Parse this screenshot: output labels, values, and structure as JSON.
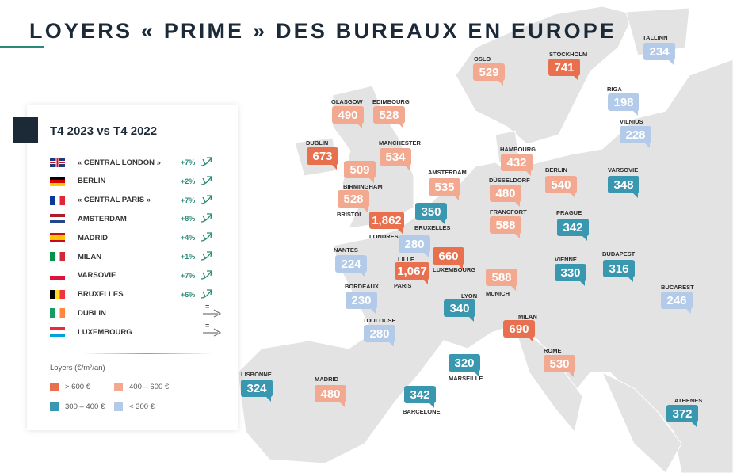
{
  "title": "LOYERS « PRIME » DES BUREAUX EN EUROPE",
  "colors": {
    "above_600": "#e9704f",
    "400_600": "#f2a98f",
    "300_400": "#3a97b0",
    "below_300": "#b3cbe9",
    "title": "#1c2a38",
    "trend_up": "#2a8a77"
  },
  "panel": {
    "heading": "T4 2023 vs T4 2022",
    "rows": [
      {
        "flag": "uk-flag",
        "name": "« CENTRAL LONDON »",
        "change": "+7%",
        "trend": "up"
      },
      {
        "flag": "germany-flag",
        "name": "BERLIN",
        "change": "+2%",
        "trend": "up"
      },
      {
        "flag": "france-flag",
        "name": "« CENTRAL PARIS »",
        "change": "+7%",
        "trend": "up"
      },
      {
        "flag": "netherlands-flag",
        "name": "AMSTERDAM",
        "change": "+8%",
        "trend": "up"
      },
      {
        "flag": "spain-flag",
        "name": "MADRID",
        "change": "+4%",
        "trend": "up"
      },
      {
        "flag": "italy-flag",
        "name": "MILAN",
        "change": "+1%",
        "trend": "up"
      },
      {
        "flag": "poland-flag",
        "name": "VARSOVIE",
        "change": "+7%",
        "trend": "up"
      },
      {
        "flag": "belgium-flag",
        "name": "BRUXELLES",
        "change": "+6%",
        "trend": "up"
      },
      {
        "flag": "ireland-flag",
        "name": "DUBLIN",
        "change": "=",
        "trend": "stable"
      },
      {
        "flag": "luxembourg-flag",
        "name": "LUXEMBOURG",
        "change": "=",
        "trend": "stable"
      }
    ],
    "legend": {
      "title": "Loyers (€/m²/an)",
      "items": [
        "> 600 €",
        "400 – 600 €",
        "300 – 400 €",
        "< 300 €"
      ]
    }
  },
  "cities": [
    {
      "name": "OSLO",
      "value": "529",
      "band": "400-600"
    },
    {
      "name": "STOCKHOLM",
      "value": "741",
      "band": ">600"
    },
    {
      "name": "TALLINN",
      "value": "234",
      "band": "<300"
    },
    {
      "name": "RIGA",
      "value": "198",
      "band": "<300"
    },
    {
      "name": "VILNIUS",
      "value": "228",
      "band": "<300"
    },
    {
      "name": "GLASGOW",
      "value": "490",
      "band": "400-600"
    },
    {
      "name": "EDIMBOURG",
      "value": "528",
      "band": "400-600"
    },
    {
      "name": "DUBLIN",
      "value": "673",
      "band": ">600"
    },
    {
      "name": "MANCHESTER",
      "value": "534",
      "band": "400-600"
    },
    {
      "name": "BIRMINGHAM",
      "value": "509",
      "band": "400-600"
    },
    {
      "name": "BRISTOL",
      "value": "528",
      "band": "400-600"
    },
    {
      "name": "AMSTERDAM",
      "value": "535",
      "band": "400-600"
    },
    {
      "name": "BRUXELLES",
      "value": "350",
      "band": "300-400"
    },
    {
      "name": "LONDRES",
      "value": "1,862",
      "band": ">600"
    },
    {
      "name": "HAMBOURG",
      "value": "432",
      "band": "400-600"
    },
    {
      "name": "DÜSSELDORF",
      "value": "480",
      "band": "400-600"
    },
    {
      "name": "BERLIN",
      "value": "540",
      "band": "400-600"
    },
    {
      "name": "VARSOVIE",
      "value": "348",
      "band": "300-400"
    },
    {
      "name": "FRANCFORT",
      "value": "588",
      "band": "400-600"
    },
    {
      "name": "PRAGUE",
      "value": "342",
      "band": "300-400"
    },
    {
      "name": "LILLE",
      "value": "280",
      "band": "<300"
    },
    {
      "name": "LUXEMBOURG",
      "value": "660",
      "band": ">600"
    },
    {
      "name": "NANTES",
      "value": "224",
      "band": "<300"
    },
    {
      "name": "PARIS",
      "value": "1,067",
      "band": ">600"
    },
    {
      "name": "VIENNE",
      "value": "330",
      "band": "300-400"
    },
    {
      "name": "BUDAPEST",
      "value": "316",
      "band": "300-400"
    },
    {
      "name": "MUNICH",
      "value": "588",
      "band": "400-600"
    },
    {
      "name": "BORDEAUX",
      "value": "230",
      "band": "<300"
    },
    {
      "name": "BUCAREST",
      "value": "246",
      "band": "<300"
    },
    {
      "name": "LYON",
      "value": "340",
      "band": "300-400"
    },
    {
      "name": "MILAN",
      "value": "690",
      "band": ">600"
    },
    {
      "name": "TOULOUSE",
      "value": "280",
      "band": "<300"
    },
    {
      "name": "ROME",
      "value": "530",
      "band": "400-600"
    },
    {
      "name": "MARSEILLE",
      "value": "320",
      "band": "300-400"
    },
    {
      "name": "LISBONNE",
      "value": "324",
      "band": "300-400"
    },
    {
      "name": "MADRID",
      "value": "480",
      "band": "400-600"
    },
    {
      "name": "BARCELONE",
      "value": "342",
      "band": "300-400"
    },
    {
      "name": "ATHENES",
      "value": "372",
      "band": "300-400"
    }
  ]
}
